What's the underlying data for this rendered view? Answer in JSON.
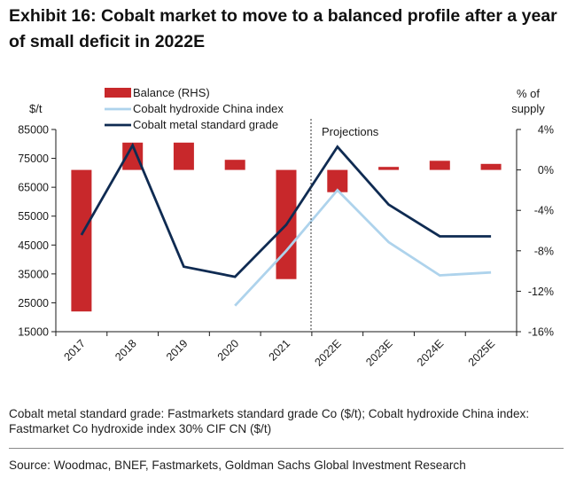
{
  "title": "Exhibit 16: Cobalt market to move to a balanced profile after a year of small deficit in 2022E",
  "colors": {
    "balance": "#c8282b",
    "hydroxide": "#aed3ec",
    "metal": "#0f2b52",
    "axis": "#1a1a1a"
  },
  "chart_data": {
    "type": "bar",
    "categories": [
      "2017",
      "2018",
      "2019",
      "2020",
      "2021",
      "2022E",
      "2023E",
      "2024E",
      "2025E"
    ],
    "left_axis": {
      "label": "$/t",
      "ylim": [
        15000,
        85000
      ],
      "ticks": [
        15000,
        25000,
        35000,
        45000,
        55000,
        65000,
        75000,
        85000
      ],
      "tick_labels": [
        "15000",
        "25000",
        "35000",
        "45000",
        "55000",
        "65000",
        "75000",
        "85000"
      ]
    },
    "right_axis": {
      "label_line1": "% of",
      "label_line2": "supply",
      "ylim": [
        -16,
        4
      ],
      "ticks": [
        4,
        0,
        -4,
        -8,
        -12,
        -16
      ],
      "tick_labels": [
        "4%",
        "0%",
        "-4%",
        "-8%",
        "-12%",
        "-16%"
      ]
    },
    "series": [
      {
        "name": "Balance (RHS)",
        "kind": "bar",
        "axis": "right",
        "values": [
          -14.0,
          2.7,
          2.7,
          1.0,
          -10.8,
          -2.2,
          0.3,
          0.9,
          0.6
        ]
      },
      {
        "name": "Cobalt hydroxide China index",
        "kind": "line",
        "axis": "left",
        "values": [
          null,
          null,
          null,
          24000,
          43000,
          64000,
          46000,
          34500,
          35500
        ]
      },
      {
        "name": "Cobalt metal standard grade",
        "kind": "line",
        "axis": "left",
        "values": [
          48500,
          79500,
          37500,
          34000,
          52000,
          79000,
          59000,
          48000,
          48000
        ]
      }
    ],
    "annotations": [
      {
        "text": "Projections",
        "after_category": "2021"
      }
    ],
    "grid": false
  },
  "note": "Cobalt metal standard grade: Fastmarkets standard grade Co ($/t); Cobalt hydroxide China index: Fastmarket Co hydroxide index 30% CIF CN ($/t)",
  "source": "Source: Woodmac, BNEF, Fastmarkets, Goldman Sachs Global Investment Research"
}
